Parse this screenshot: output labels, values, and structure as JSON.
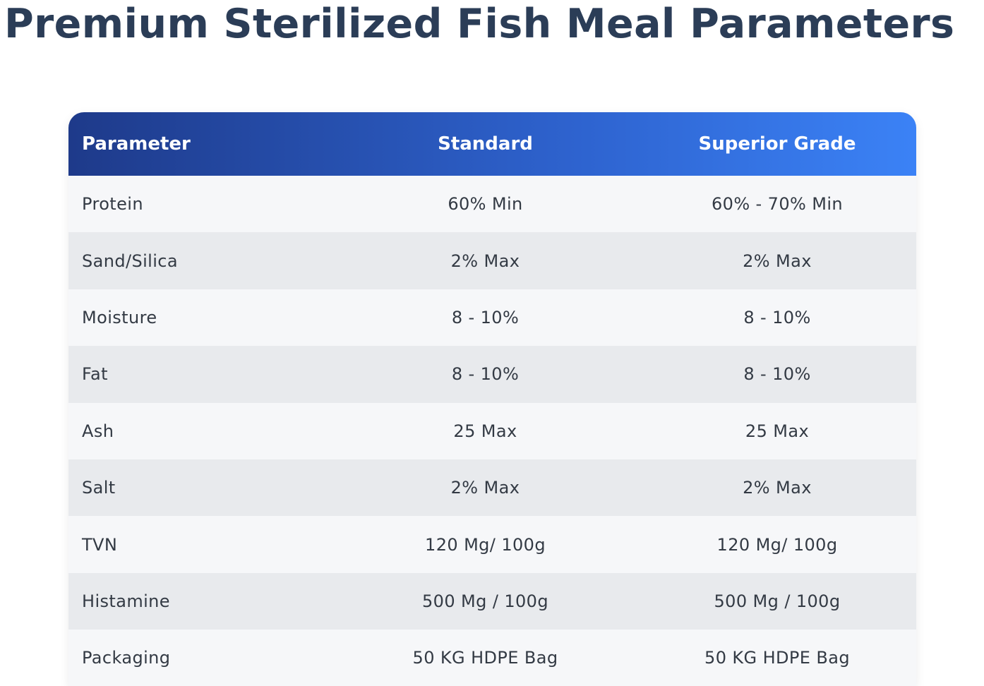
{
  "page": {
    "title": "Premium Sterilized Fish Meal Parameters"
  },
  "colors": {
    "title": "#2b3d57",
    "header_gradient_start": "#1e3a8a",
    "header_gradient_end": "#3b82f6",
    "row_light": "#f6f7f9",
    "row_dark": "#e8eaed",
    "cell_text": "#333a44"
  },
  "table": {
    "headers": [
      "Parameter",
      "Standard",
      "Superior Grade"
    ],
    "rows": [
      [
        "Protein",
        "60% Min",
        "60% - 70% Min"
      ],
      [
        "Sand/Silica",
        "2% Max",
        "2% Max"
      ],
      [
        "Moisture",
        "8 - 10%",
        "8 - 10%"
      ],
      [
        "Fat",
        "8 - 10%",
        "8 - 10%"
      ],
      [
        "Ash",
        "25 Max",
        "25 Max"
      ],
      [
        "Salt",
        "2% Max",
        "2% Max"
      ],
      [
        "TVN",
        "120 Mg/ 100g",
        "120 Mg/ 100g"
      ],
      [
        "Histamine",
        "500 Mg / 100g",
        "500 Mg / 100g"
      ],
      [
        "Packaging",
        "50 KG HDPE Bag",
        "50 KG HDPE Bag"
      ]
    ]
  }
}
